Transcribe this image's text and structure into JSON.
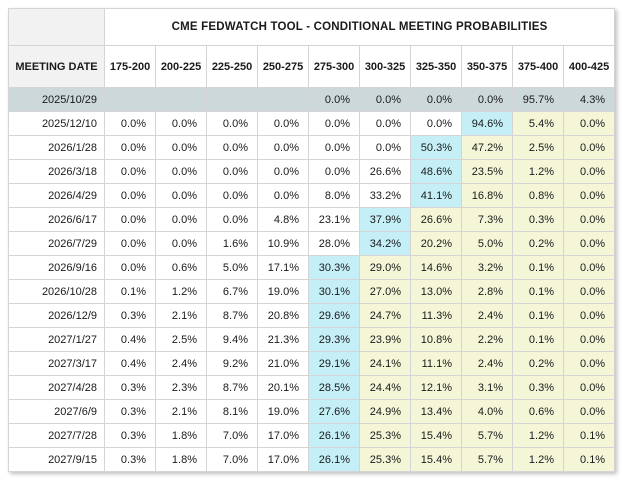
{
  "table": {
    "title": "CME FEDWATCH TOOL - CONDITIONAL MEETING PROBABILITIES",
    "date_header": "MEETING DATE",
    "rate_headers": [
      "175-200",
      "200-225",
      "225-250",
      "250-275",
      "275-300",
      "300-325",
      "325-350",
      "350-375",
      "375-400",
      "400-425"
    ],
    "rows": [
      {
        "date": "2025/10/29",
        "values": [
          "",
          "",
          "",
          "",
          "0.0%",
          "0.0%",
          "0.0%",
          "0.0%",
          "95.7%",
          "4.3%"
        ],
        "row_highlight": true,
        "cyan_col": null
      },
      {
        "date": "2025/12/10",
        "values": [
          "0.0%",
          "0.0%",
          "0.0%",
          "0.0%",
          "0.0%",
          "0.0%",
          "0.0%",
          "94.6%",
          "5.4%",
          "0.0%"
        ],
        "row_highlight": false,
        "cyan_col": 7
      },
      {
        "date": "2026/1/28",
        "values": [
          "0.0%",
          "0.0%",
          "0.0%",
          "0.0%",
          "0.0%",
          "0.0%",
          "50.3%",
          "47.2%",
          "2.5%",
          "0.0%"
        ],
        "row_highlight": false,
        "cyan_col": 6
      },
      {
        "date": "2026/3/18",
        "values": [
          "0.0%",
          "0.0%",
          "0.0%",
          "0.0%",
          "0.0%",
          "26.6%",
          "48.6%",
          "23.5%",
          "1.2%",
          "0.0%"
        ],
        "row_highlight": false,
        "cyan_col": 6
      },
      {
        "date": "2026/4/29",
        "values": [
          "0.0%",
          "0.0%",
          "0.0%",
          "0.0%",
          "8.0%",
          "33.2%",
          "41.1%",
          "16.8%",
          "0.8%",
          "0.0%"
        ],
        "row_highlight": false,
        "cyan_col": 6
      },
      {
        "date": "2026/6/17",
        "values": [
          "0.0%",
          "0.0%",
          "0.0%",
          "4.8%",
          "23.1%",
          "37.9%",
          "26.6%",
          "7.3%",
          "0.3%",
          "0.0%"
        ],
        "row_highlight": false,
        "cyan_col": 5
      },
      {
        "date": "2026/7/29",
        "values": [
          "0.0%",
          "0.0%",
          "1.6%",
          "10.9%",
          "28.0%",
          "34.2%",
          "20.2%",
          "5.0%",
          "0.2%",
          "0.0%"
        ],
        "row_highlight": false,
        "cyan_col": 5
      },
      {
        "date": "2026/9/16",
        "values": [
          "0.0%",
          "0.6%",
          "5.0%",
          "17.1%",
          "30.3%",
          "29.0%",
          "14.6%",
          "3.2%",
          "0.1%",
          "0.0%"
        ],
        "row_highlight": false,
        "cyan_col": 4
      },
      {
        "date": "2026/10/28",
        "values": [
          "0.1%",
          "1.2%",
          "6.7%",
          "19.0%",
          "30.1%",
          "27.0%",
          "13.0%",
          "2.8%",
          "0.1%",
          "0.0%"
        ],
        "row_highlight": false,
        "cyan_col": 4
      },
      {
        "date": "2026/12/9",
        "values": [
          "0.3%",
          "2.1%",
          "8.7%",
          "20.8%",
          "29.6%",
          "24.7%",
          "11.3%",
          "2.4%",
          "0.1%",
          "0.0%"
        ],
        "row_highlight": false,
        "cyan_col": 4
      },
      {
        "date": "2027/1/27",
        "values": [
          "0.4%",
          "2.5%",
          "9.4%",
          "21.3%",
          "29.3%",
          "23.9%",
          "10.8%",
          "2.2%",
          "0.1%",
          "0.0%"
        ],
        "row_highlight": false,
        "cyan_col": 4
      },
      {
        "date": "2027/3/17",
        "values": [
          "0.4%",
          "2.4%",
          "9.2%",
          "21.0%",
          "29.1%",
          "24.1%",
          "11.1%",
          "2.4%",
          "0.2%",
          "0.0%"
        ],
        "row_highlight": false,
        "cyan_col": 4
      },
      {
        "date": "2027/4/28",
        "values": [
          "0.3%",
          "2.3%",
          "8.7%",
          "20.1%",
          "28.5%",
          "24.4%",
          "12.1%",
          "3.1%",
          "0.3%",
          "0.0%"
        ],
        "row_highlight": false,
        "cyan_col": 4
      },
      {
        "date": "2027/6/9",
        "values": [
          "0.3%",
          "2.1%",
          "8.1%",
          "19.0%",
          "27.6%",
          "24.9%",
          "13.4%",
          "4.0%",
          "0.6%",
          "0.0%"
        ],
        "row_highlight": false,
        "cyan_col": 4
      },
      {
        "date": "2027/7/28",
        "values": [
          "0.3%",
          "1.8%",
          "7.0%",
          "17.0%",
          "26.1%",
          "25.3%",
          "15.4%",
          "5.7%",
          "1.2%",
          "0.1%"
        ],
        "row_highlight": false,
        "cyan_col": 4
      },
      {
        "date": "2027/9/15",
        "values": [
          "0.3%",
          "1.8%",
          "7.0%",
          "17.0%",
          "26.1%",
          "25.3%",
          "15.4%",
          "5.7%",
          "1.2%",
          "0.1%"
        ],
        "row_highlight": false,
        "cyan_col": 4
      }
    ]
  },
  "colors": {
    "cyan": "#c5eff7",
    "yellow": "#f5f5d8",
    "selected_row": "#ccd8da",
    "header_bg": "#f2f2f2",
    "border": "#d4d4d4"
  }
}
